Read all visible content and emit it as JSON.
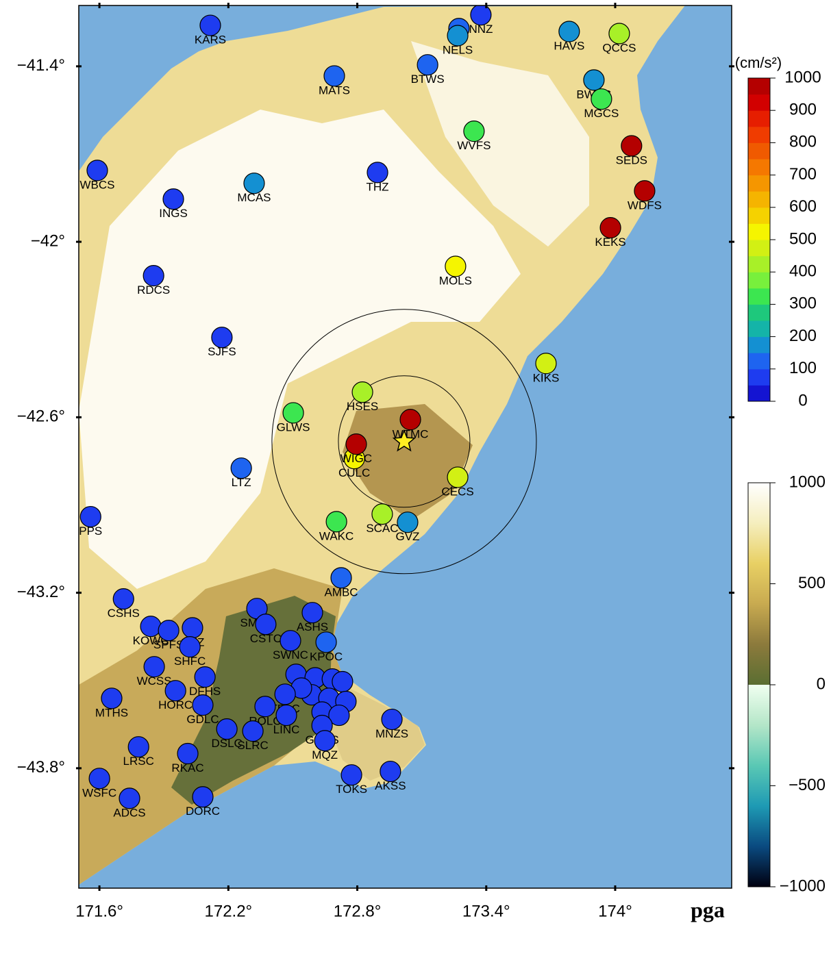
{
  "map": {
    "title": "pga",
    "xlim": [
      171.504,
      174.542
    ],
    "ylim": [
      -44.21,
      -41.192
    ],
    "xticks": [
      {
        "value": 171.6,
        "label": "171.6°"
      },
      {
        "value": 172.2,
        "label": "172.2°"
      },
      {
        "value": 172.8,
        "label": "172.8°"
      },
      {
        "value": 173.4,
        "label": "173.4°"
      },
      {
        "value": 174,
        "label": "174°"
      }
    ],
    "yticks": [
      {
        "value": -41.4,
        "label": "−41.4°"
      },
      {
        "value": -42,
        "label": "−42°"
      },
      {
        "value": -42.6,
        "label": "−42.6°"
      },
      {
        "value": -43.2,
        "label": "−43.2°"
      },
      {
        "value": -43.8,
        "label": "−43.8°"
      }
    ],
    "epicenter": {
      "lon": 173.018,
      "lat": -42.683,
      "color": "#ffee22"
    },
    "pga_scale": {
      "unit": "(cm/s²)",
      "lim": [
        0,
        1000
      ],
      "ticks": [
        0,
        100,
        200,
        300,
        400,
        500,
        600,
        700,
        800,
        900,
        1000
      ],
      "colors": [
        "#1414d2",
        "#1e3cf0",
        "#1e64f0",
        "#1490d2",
        "#14b4a8",
        "#1ec87c",
        "#3ce650",
        "#78f03c",
        "#a8f028",
        "#d2f014",
        "#f5f500",
        "#f5d200",
        "#f5b400",
        "#f59600",
        "#f57800",
        "#f05a00",
        "#f03c00",
        "#e61e00",
        "#d20000",
        "#b40000"
      ]
    },
    "topo_scale": {
      "lim": [
        -1000,
        1000
      ],
      "ticks": [
        {
          "value": 1000,
          "label": "1000"
        },
        {
          "value": 500,
          "label": "500"
        },
        {
          "value": 0,
          "label": "0"
        },
        {
          "value": -500,
          "label": "−500"
        },
        {
          "value": -1000,
          "label": "−1000"
        }
      ],
      "land_colors": [
        "#5a6e32",
        "#8c7a3c",
        "#c8aa50",
        "#e8d064",
        "#f5eebe",
        "#ffffff"
      ],
      "sea_colors": [
        "#f0fff0",
        "#b4e6c8",
        "#5ac8b4",
        "#1e9ab4",
        "#0a4a80",
        "#000010"
      ]
    },
    "stations": [
      {
        "name": "KARS",
        "lon": 172.116,
        "lat": -41.26,
        "pga": 80
      },
      {
        "name": "MATS",
        "lon": 172.693,
        "lat": -41.433,
        "pga": 100
      },
      {
        "name": "BTWS",
        "lon": 173.127,
        "lat": -41.395,
        "pga": 100
      },
      {
        "name": "NNZ",
        "lon": 173.375,
        "lat": -41.224,
        "pga": 50
      },
      {
        "name": null,
        "lon": 173.273,
        "lat": -41.271,
        "pga": 100
      },
      {
        "name": "NELS",
        "lon": 173.267,
        "lat": -41.295,
        "pga": 180
      },
      {
        "name": "HAVS",
        "lon": 173.786,
        "lat": -41.281,
        "pga": 180
      },
      {
        "name": "QCCS",
        "lon": 174.019,
        "lat": -41.288,
        "pga": 420
      },
      {
        "name": "BWRS",
        "lon": 173.901,
        "lat": -41.447,
        "pga": 180
      },
      {
        "name": "MGCS",
        "lon": 173.936,
        "lat": -41.512,
        "pga": 320
      },
      {
        "name": "WVFS",
        "lon": 173.343,
        "lat": -41.622,
        "pga": 300
      },
      {
        "name": "SEDS",
        "lon": 174.076,
        "lat": -41.672,
        "pga": 950
      },
      {
        "name": "WDFS",
        "lon": 174.137,
        "lat": -41.826,
        "pga": 950
      },
      {
        "name": "KEKS",
        "lon": 173.978,
        "lat": -41.952,
        "pga": 950
      },
      {
        "name": "MOLS",
        "lon": 173.257,
        "lat": -42.084,
        "pga": 500
      },
      {
        "name": "THZ",
        "lon": 172.894,
        "lat": -41.763,
        "pga": 60
      },
      {
        "name": "MCAS",
        "lon": 172.32,
        "lat": -41.8,
        "pga": 180
      },
      {
        "name": "WBCS",
        "lon": 171.59,
        "lat": -41.756,
        "pga": 80
      },
      {
        "name": "INGS",
        "lon": 171.944,
        "lat": -41.854,
        "pga": 50
      },
      {
        "name": "RDCS",
        "lon": 171.852,
        "lat": -42.116,
        "pga": 50
      },
      {
        "name": "SJFS",
        "lon": 172.17,
        "lat": -42.327,
        "pga": 60
      },
      {
        "name": "KIKS",
        "lon": 173.678,
        "lat": -42.416,
        "pga": 480
      },
      {
        "name": "HSES",
        "lon": 172.824,
        "lat": -42.514,
        "pga": 400
      },
      {
        "name": "GLWS",
        "lon": 172.502,
        "lat": -42.585,
        "pga": 320
      },
      {
        "name": "WTMC",
        "lon": 173.047,
        "lat": -42.608,
        "pga": 950
      },
      {
        "name": "CULC",
        "lon": 172.786,
        "lat": -42.741,
        "pga": 500
      },
      {
        "name": "WIGC",
        "lon": 172.795,
        "lat": -42.692,
        "pga": 950
      },
      {
        "name": "LTZ",
        "lon": 172.26,
        "lat": -42.774,
        "pga": 100
      },
      {
        "name": "PPS",
        "lon": 171.559,
        "lat": -42.94,
        "pga": 80
      },
      {
        "name": "CECS",
        "lon": 173.267,
        "lat": -42.805,
        "pga": 480
      },
      {
        "name": "WAKC",
        "lon": 172.703,
        "lat": -42.957,
        "pga": 300
      },
      {
        "name": "SCAC",
        "lon": 172.916,
        "lat": -42.931,
        "pga": 420
      },
      {
        "name": "GVZ",
        "lon": 173.034,
        "lat": -42.959,
        "pga": 180
      },
      {
        "name": "AMBC",
        "lon": 172.725,
        "lat": -43.149,
        "pga": 100
      },
      {
        "name": "CSHS",
        "lon": 171.712,
        "lat": -43.221,
        "pga": 50
      },
      {
        "name": "SMHS",
        "lon": 172.333,
        "lat": -43.254,
        "pga": 60
      },
      {
        "name": "ASHS",
        "lon": 172.591,
        "lat": -43.268,
        "pga": 60
      },
      {
        "name": "KOWC",
        "lon": 171.839,
        "lat": -43.315,
        "pga": 60
      },
      {
        "name": "SPFS",
        "lon": 171.922,
        "lat": -43.329,
        "pga": 60
      },
      {
        "name": "OXZ",
        "lon": 172.033,
        "lat": -43.32,
        "pga": 50
      },
      {
        "name": "SHFC",
        "lon": 172.021,
        "lat": -43.385,
        "pga": 50
      },
      {
        "name": "CSTC",
        "lon": 172.374,
        "lat": -43.308,
        "pga": 50
      },
      {
        "name": "SWNC",
        "lon": 172.489,
        "lat": -43.364,
        "pga": 50
      },
      {
        "name": "KPOC",
        "lon": 172.655,
        "lat": -43.369,
        "pga": 100
      },
      {
        "name": "WCSS",
        "lon": 171.855,
        "lat": -43.453,
        "pga": 50
      },
      {
        "name": "DFHS",
        "lon": 172.091,
        "lat": -43.488,
        "pga": 50
      },
      {
        "name": "HORC",
        "lon": 171.954,
        "lat": -43.535,
        "pga": 50
      },
      {
        "name": "MTHS",
        "lon": 171.657,
        "lat": -43.561,
        "pga": 50
      },
      {
        "name": "GDLC",
        "lon": 172.081,
        "lat": -43.584,
        "pga": 50
      },
      {
        "name": null,
        "lon": 172.515,
        "lat": -43.479,
        "pga": 80
      },
      {
        "name": null,
        "lon": 172.604,
        "lat": -43.491,
        "pga": 80
      },
      {
        "name": null,
        "lon": 172.684,
        "lat": -43.495,
        "pga": 80
      },
      {
        "name": null,
        "lon": 172.731,
        "lat": -43.504,
        "pga": 80
      },
      {
        "name": null,
        "lon": 172.588,
        "lat": -43.549,
        "pga": 80
      },
      {
        "name": null,
        "lon": 172.668,
        "lat": -43.561,
        "pga": 60
      },
      {
        "name": null,
        "lon": 172.747,
        "lat": -43.572,
        "pga": 60
      },
      {
        "name": null,
        "lon": 172.636,
        "lat": -43.608,
        "pga": 60
      },
      {
        "name": null,
        "lon": 172.715,
        "lat": -43.619,
        "pga": 60
      },
      {
        "name": null,
        "lon": 172.54,
        "lat": -43.526,
        "pga": 80
      },
      {
        "name": "TPLC",
        "lon": 172.464,
        "lat": -43.547,
        "pga": 50
      },
      {
        "name": "ROLC",
        "lon": 172.371,
        "lat": -43.589,
        "pga": 50
      },
      {
        "name": "LINC",
        "lon": 172.47,
        "lat": -43.619,
        "pga": 50
      },
      {
        "name": "DSLC",
        "lon": 172.193,
        "lat": -43.666,
        "pga": 50
      },
      {
        "name": "SLRC",
        "lon": 172.314,
        "lat": -43.673,
        "pga": 50
      },
      {
        "name": "GOVS",
        "lon": 172.636,
        "lat": -43.654,
        "pga": 60
      },
      {
        "name": "MQZ",
        "lon": 172.649,
        "lat": -43.706,
        "pga": 60
      },
      {
        "name": "MNZS",
        "lon": 172.961,
        "lat": -43.633,
        "pga": 50
      },
      {
        "name": "LRSC",
        "lon": 171.782,
        "lat": -43.727,
        "pga": 50
      },
      {
        "name": "RKAC",
        "lon": 172.011,
        "lat": -43.75,
        "pga": 50
      },
      {
        "name": "TOKS",
        "lon": 172.773,
        "lat": -43.823,
        "pga": 50
      },
      {
        "name": "AKSS",
        "lon": 172.954,
        "lat": -43.811,
        "pga": 50
      },
      {
        "name": "WSFC",
        "lon": 171.6,
        "lat": -43.835,
        "pga": 50
      },
      {
        "name": "ADCS",
        "lon": 171.74,
        "lat": -43.903,
        "pga": 50
      },
      {
        "name": "DORC",
        "lon": 172.081,
        "lat": -43.898,
        "pga": 50
      }
    ]
  }
}
